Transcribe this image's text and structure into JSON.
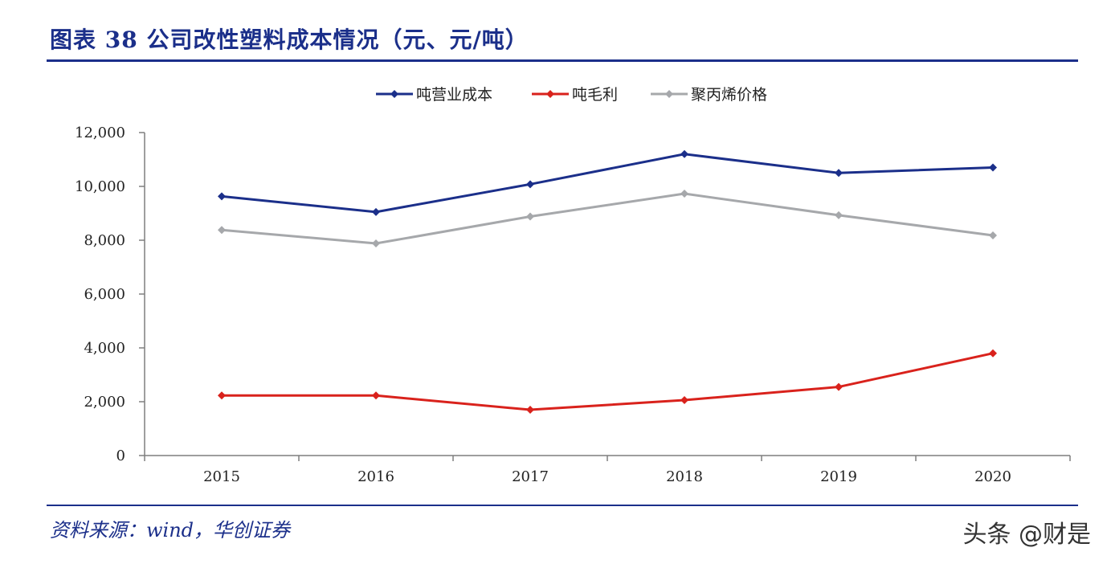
{
  "header": {
    "title": "图表 38   公司改性塑料成本情况（元、元/吨）"
  },
  "footer": {
    "source": "资料来源：wind，华创证券",
    "watermark": "头条 @财是"
  },
  "chart_data": {
    "type": "line",
    "title": "图表 38   公司改性塑料成本情况（元、元/吨）",
    "xlabel": "",
    "ylabel": "",
    "x": [
      "2015",
      "2016",
      "2017",
      "2018",
      "2019",
      "2020"
    ],
    "ylim": [
      0,
      12000
    ],
    "yticks": [
      0,
      2000,
      4000,
      6000,
      8000,
      10000,
      12000
    ],
    "ytick_labels": [
      "0",
      "2,000",
      "4,000",
      "6,000",
      "8,000",
      "10,000",
      "12,000"
    ],
    "grid": false,
    "legend_position": "top-center",
    "series": [
      {
        "name": "吨营业成本",
        "color": "#1b2f8a",
        "values": [
          9630,
          9050,
          10080,
          11200,
          10500,
          10700
        ]
      },
      {
        "name": "吨毛利",
        "color": "#d9221c",
        "values": [
          2230,
          2230,
          1700,
          2060,
          2550,
          3800
        ]
      },
      {
        "name": "聚丙烯价格",
        "color": "#a6a8ab",
        "values": [
          8380,
          7880,
          8880,
          9730,
          8930,
          8180
        ]
      }
    ]
  }
}
